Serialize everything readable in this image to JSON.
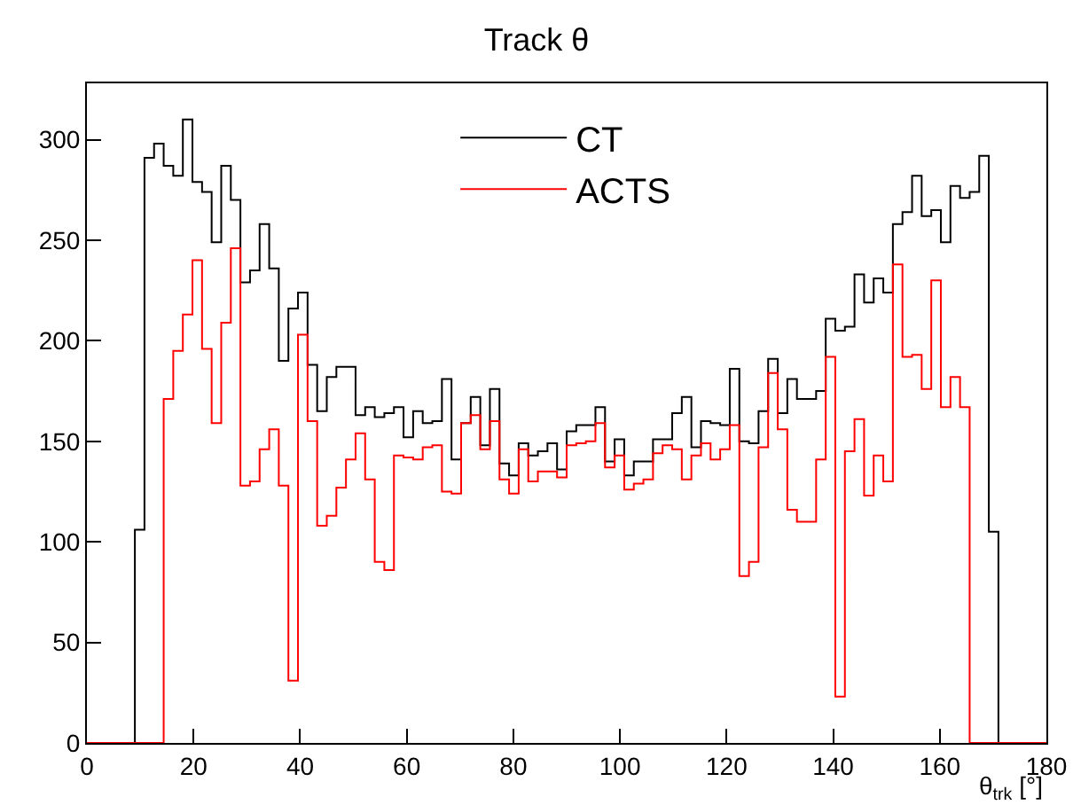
{
  "chart_data": {
    "type": "histogram",
    "title": "Track θ",
    "xlabel": "θ$_{trk}$ [°]",
    "bins": [
      0,
      1.8,
      3.6,
      5.4,
      7.2,
      9,
      10.8,
      12.6,
      14.4,
      16.2,
      18,
      19.8,
      21.6,
      23.4,
      25.2,
      27,
      28.8,
      30.6,
      32.4,
      34.2,
      36,
      37.8,
      39.6,
      41.4,
      43.2,
      45,
      46.8,
      48.6,
      50.4,
      52.2,
      54,
      55.8,
      57.6,
      59.4,
      61.2,
      63,
      64.8,
      66.6,
      68.4,
      70.2,
      72,
      73.8,
      75.6,
      77.4,
      79.2,
      81,
      82.8,
      84.6,
      86.4,
      88.2,
      90,
      91.8,
      93.6,
      95.4,
      97.2,
      99,
      100.8,
      102.6,
      104.4,
      106.2,
      108,
      109.8,
      111.6,
      113.4,
      115.2,
      117,
      118.8,
      120.6,
      122.4,
      124.2,
      126,
      127.8,
      129.6,
      131.4,
      133.2,
      135,
      136.8,
      138.6,
      140.4,
      142.2,
      144,
      145.8,
      147.6,
      149.4,
      151.2,
      153,
      154.8,
      156.6,
      158.4,
      160.2,
      162,
      163.8,
      165.6,
      167.4,
      169.2,
      171,
      172.8,
      174.6,
      176.4,
      178.2,
      180
    ],
    "series": [
      {
        "name": "CT",
        "color": "#000000",
        "values": [
          0,
          0,
          0,
          0,
          0,
          106,
          291,
          298,
          287,
          282,
          310,
          279,
          274,
          249,
          287,
          270,
          229,
          235,
          258,
          236,
          190,
          216,
          224,
          188,
          165,
          182,
          187,
          187,
          163,
          167,
          162,
          164,
          167,
          152,
          165,
          159,
          160,
          181,
          141,
          159,
          172,
          148,
          176,
          139,
          133,
          149,
          143,
          145,
          149,
          136,
          155,
          158,
          158,
          167,
          140,
          151,
          133,
          140,
          140,
          151,
          151,
          164,
          172,
          147,
          160,
          159,
          158,
          186,
          150,
          149,
          165,
          191,
          164,
          181,
          171,
          171,
          175,
          211,
          205,
          207,
          233,
          219,
          231,
          224,
          258,
          264,
          282,
          262,
          265,
          249,
          277,
          271,
          274,
          292,
          105,
          0,
          0,
          0,
          0,
          0
        ]
      },
      {
        "name": "ACTS",
        "color": "#ff0000",
        "values": [
          0,
          0,
          0,
          0,
          0,
          0,
          0,
          0,
          171,
          195,
          213,
          240,
          196,
          159,
          209,
          246,
          128,
          130,
          146,
          156,
          128,
          31,
          203,
          160,
          108,
          113,
          127,
          141,
          154,
          131,
          90,
          86,
          143,
          142,
          141,
          147,
          148,
          125,
          124,
          159,
          163,
          146,
          160,
          131,
          124,
          146,
          130,
          135,
          135,
          132,
          148,
          149,
          150,
          159,
          137,
          143,
          126,
          129,
          131,
          144,
          148,
          146,
          131,
          143,
          149,
          141,
          146,
          158,
          83,
          90,
          147,
          184,
          156,
          116,
          110,
          110,
          141,
          192,
          23,
          145,
          161,
          123,
          143,
          130,
          238,
          192,
          193,
          176,
          230,
          167,
          182,
          167,
          0,
          0,
          0,
          0,
          0,
          0,
          0,
          0
        ]
      }
    ],
    "xlim": [
      0,
      180
    ],
    "xticks": [
      0,
      20,
      40,
      60,
      80,
      100,
      120,
      140,
      160,
      180
    ],
    "ylim": [
      0,
      328
    ],
    "yticks": [
      0,
      50,
      100,
      150,
      200,
      250,
      300
    ],
    "grid": false,
    "legend": "top"
  }
}
